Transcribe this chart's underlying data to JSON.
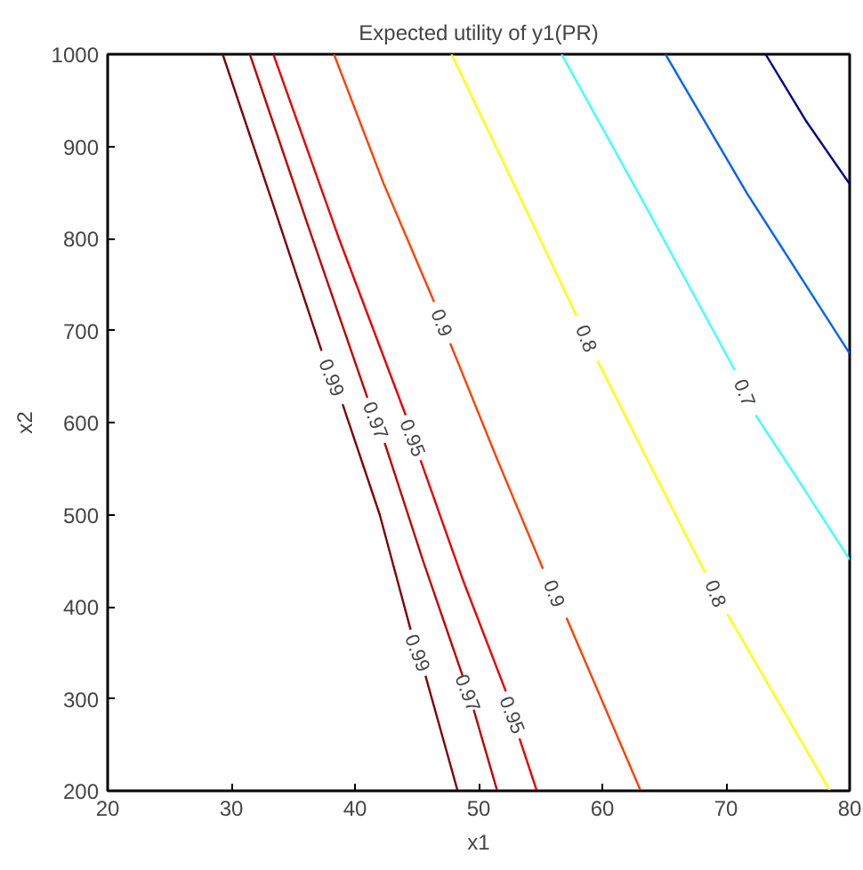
{
  "chart_data": {
    "type": "line",
    "title": "Expected utility of y1(PR)",
    "xlabel": "x1",
    "ylabel": "x2",
    "xlim": [
      20,
      80
    ],
    "ylim": [
      200,
      1000
    ],
    "xticks": [
      20,
      30,
      40,
      50,
      60,
      70,
      80
    ],
    "yticks": [
      200,
      300,
      400,
      500,
      600,
      700,
      800,
      900,
      1000
    ],
    "grid": false,
    "marker": "none",
    "line_style": "solid",
    "series": [
      {
        "name": "0.99",
        "color": "#800000",
        "x": [
          29.3,
          33.3,
          37.3,
          null,
          39.0,
          42.0,
          44.5,
          null,
          45.7,
          48.3
        ],
        "values": [
          1000,
          840,
          678,
          null,
          620,
          500,
          375,
          null,
          325,
          200
        ]
      },
      {
        "name": "0.97",
        "color": "#c00000",
        "x": [
          31.5,
          36.3,
          41.0,
          null,
          42.4,
          45.5,
          48.7,
          null,
          49.6,
          51.5
        ],
        "values": [
          1000,
          810,
          627,
          null,
          578,
          450,
          325,
          null,
          288,
          200
        ]
      },
      {
        "name": "0.95",
        "color": "#e80000",
        "x": [
          33.4,
          38.7,
          44.1,
          null,
          45.3,
          48.7,
          52.2,
          null,
          53.3,
          54.7
        ],
        "values": [
          1000,
          800,
          608,
          null,
          559,
          430,
          308,
          null,
          257,
          200
        ]
      },
      {
        "name": "0.9",
        "color": "#ff4000",
        "x": [
          38.3,
          42.3,
          46.4,
          null,
          47.7,
          51.5,
          55.2,
          null,
          57.1,
          63.1
        ],
        "values": [
          1000,
          860,
          731,
          null,
          686,
          560,
          441,
          null,
          388,
          200
        ]
      },
      {
        "name": "0.8",
        "color": "#ffff00",
        "x": [
          47.8,
          52.8,
          57.9,
          null,
          59.6,
          64.0,
          68.3,
          null,
          70.1,
          78.4
        ],
        "values": [
          1000,
          860,
          716,
          null,
          667,
          550,
          437,
          null,
          392,
          200
        ]
      },
      {
        "name": "0.7",
        "color": "#40ffff",
        "x": [
          56.7,
          63.7,
          70.7,
          null,
          72.4,
          76.2,
          80.0
        ],
        "values": [
          1000,
          830,
          657,
          null,
          608,
          530,
          451
        ]
      },
      {
        "color": "#0060ff",
        "x": [
          65.1,
          71.7,
          80.0
        ],
        "values": [
          1000,
          849,
          675
        ]
      },
      {
        "color": "#000090",
        "x": [
          73.2,
          76.5,
          80.0
        ],
        "values": [
          1000,
          927,
          859
        ]
      }
    ]
  }
}
